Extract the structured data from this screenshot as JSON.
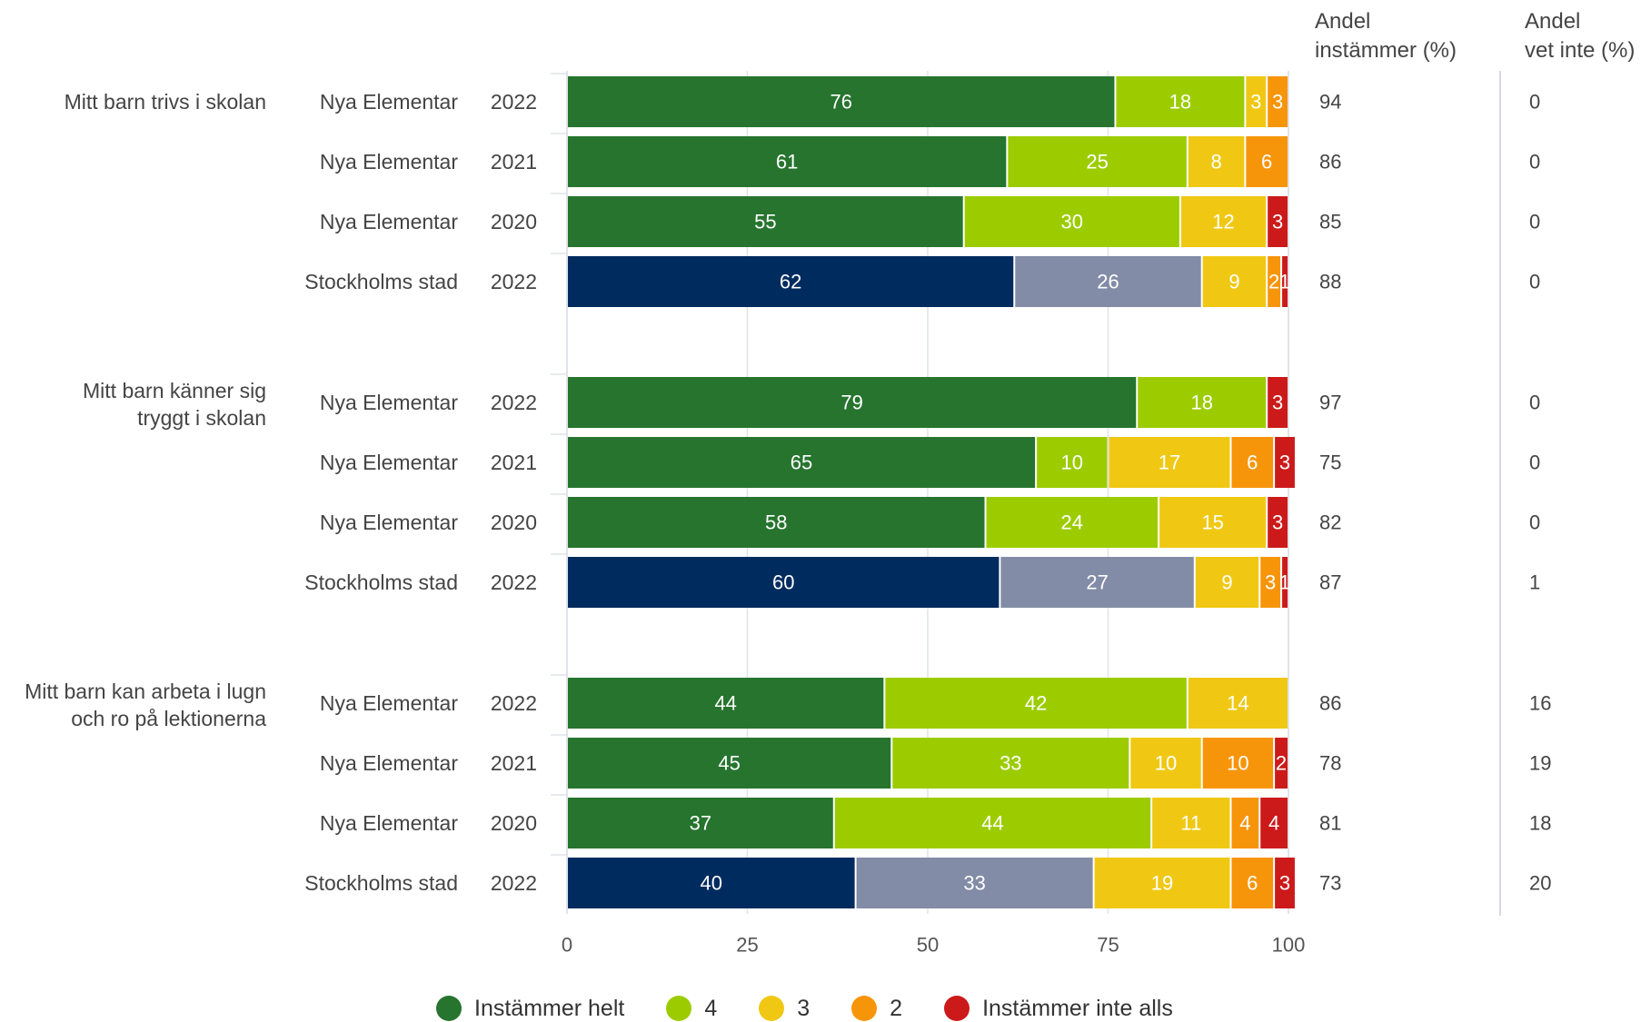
{
  "headers": {
    "andel_instammer": [
      "Andel",
      "instämmer (%)"
    ],
    "andel_vet_inte": [
      "Andel",
      "vet inte (%)"
    ]
  },
  "colors": {
    "instammer_helt": "#26742e",
    "4": "#9ccc00",
    "3": "#f0c814",
    "2": "#f7950a",
    "instammer_inte_alls": "#cc1a1a",
    "city_helt": "#002b5e",
    "city_4": "#828ca6",
    "grid": "#dfe3ea"
  },
  "legend": [
    {
      "label": "Instämmer helt",
      "color": "#26742e"
    },
    {
      "label": "4",
      "color": "#9ccc00"
    },
    {
      "label": "3",
      "color": "#f0c814"
    },
    {
      "label": "2",
      "color": "#f7950a"
    },
    {
      "label": "Instämmer inte alls",
      "color": "#cc1a1a"
    }
  ],
  "chart_data": {
    "type": "bar",
    "orientation": "horizontal",
    "stacked": true,
    "xlim": [
      0,
      100
    ],
    "xticks": [
      0,
      25,
      50,
      75,
      100
    ],
    "segment_names": [
      "Instämmer helt",
      "4",
      "3",
      "2",
      "Instämmer inte alls"
    ],
    "groups": [
      {
        "question": [
          "Mitt barn trivs i skolan"
        ],
        "rows": [
          {
            "school": "Nya Elementar",
            "year": "2022",
            "values": [
              76,
              18,
              3,
              3,
              0
            ],
            "andel_instammer": "94",
            "andel_vet_inte": "0",
            "city": false
          },
          {
            "school": "Nya Elementar",
            "year": "2021",
            "values": [
              61,
              25,
              8,
              6,
              0
            ],
            "andel_instammer": "86",
            "andel_vet_inte": "0",
            "city": false
          },
          {
            "school": "Nya Elementar",
            "year": "2020",
            "values": [
              55,
              30,
              12,
              0,
              3
            ],
            "andel_instammer": "85",
            "andel_vet_inte": "0",
            "city": false
          },
          {
            "school": "Stockholms stad",
            "year": "2022",
            "values": [
              62,
              26,
              9,
              2,
              1
            ],
            "andel_instammer": "88",
            "andel_vet_inte": "0",
            "city": true
          }
        ]
      },
      {
        "question": [
          "Mitt barn känner sig",
          "tryggt i skolan"
        ],
        "rows": [
          {
            "school": "Nya Elementar",
            "year": "2022",
            "values": [
              79,
              18,
              0,
              0,
              3
            ],
            "andel_instammer": "97",
            "andel_vet_inte": "0",
            "city": false
          },
          {
            "school": "Nya Elementar",
            "year": "2021",
            "values": [
              65,
              10,
              17,
              6,
              3
            ],
            "andel_instammer": "75",
            "andel_vet_inte": "0",
            "city": false
          },
          {
            "school": "Nya Elementar",
            "year": "2020",
            "values": [
              58,
              24,
              15,
              0,
              3
            ],
            "andel_instammer": "82",
            "andel_vet_inte": "0",
            "city": false
          },
          {
            "school": "Stockholms stad",
            "year": "2022",
            "values": [
              60,
              27,
              9,
              3,
              1
            ],
            "andel_instammer": "87",
            "andel_vet_inte": "1",
            "city": true
          }
        ]
      },
      {
        "question": [
          "Mitt barn kan arbeta i lugn",
          "och ro på lektionerna"
        ],
        "rows": [
          {
            "school": "Nya Elementar",
            "year": "2022",
            "values": [
              44,
              42,
              14,
              0,
              0
            ],
            "andel_instammer": "86",
            "andel_vet_inte": "16",
            "city": false
          },
          {
            "school": "Nya Elementar",
            "year": "2021",
            "values": [
              45,
              33,
              10,
              10,
              2
            ],
            "andel_instammer": "78",
            "andel_vet_inte": "19",
            "city": false
          },
          {
            "school": "Nya Elementar",
            "year": "2020",
            "values": [
              37,
              44,
              11,
              4,
              4
            ],
            "andel_instammer": "81",
            "andel_vet_inte": "18",
            "city": false
          },
          {
            "school": "Stockholms stad",
            "year": "2022",
            "values": [
              40,
              33,
              19,
              6,
              3
            ],
            "andel_instammer": "73",
            "andel_vet_inte": "20",
            "city": true
          }
        ]
      }
    ]
  }
}
